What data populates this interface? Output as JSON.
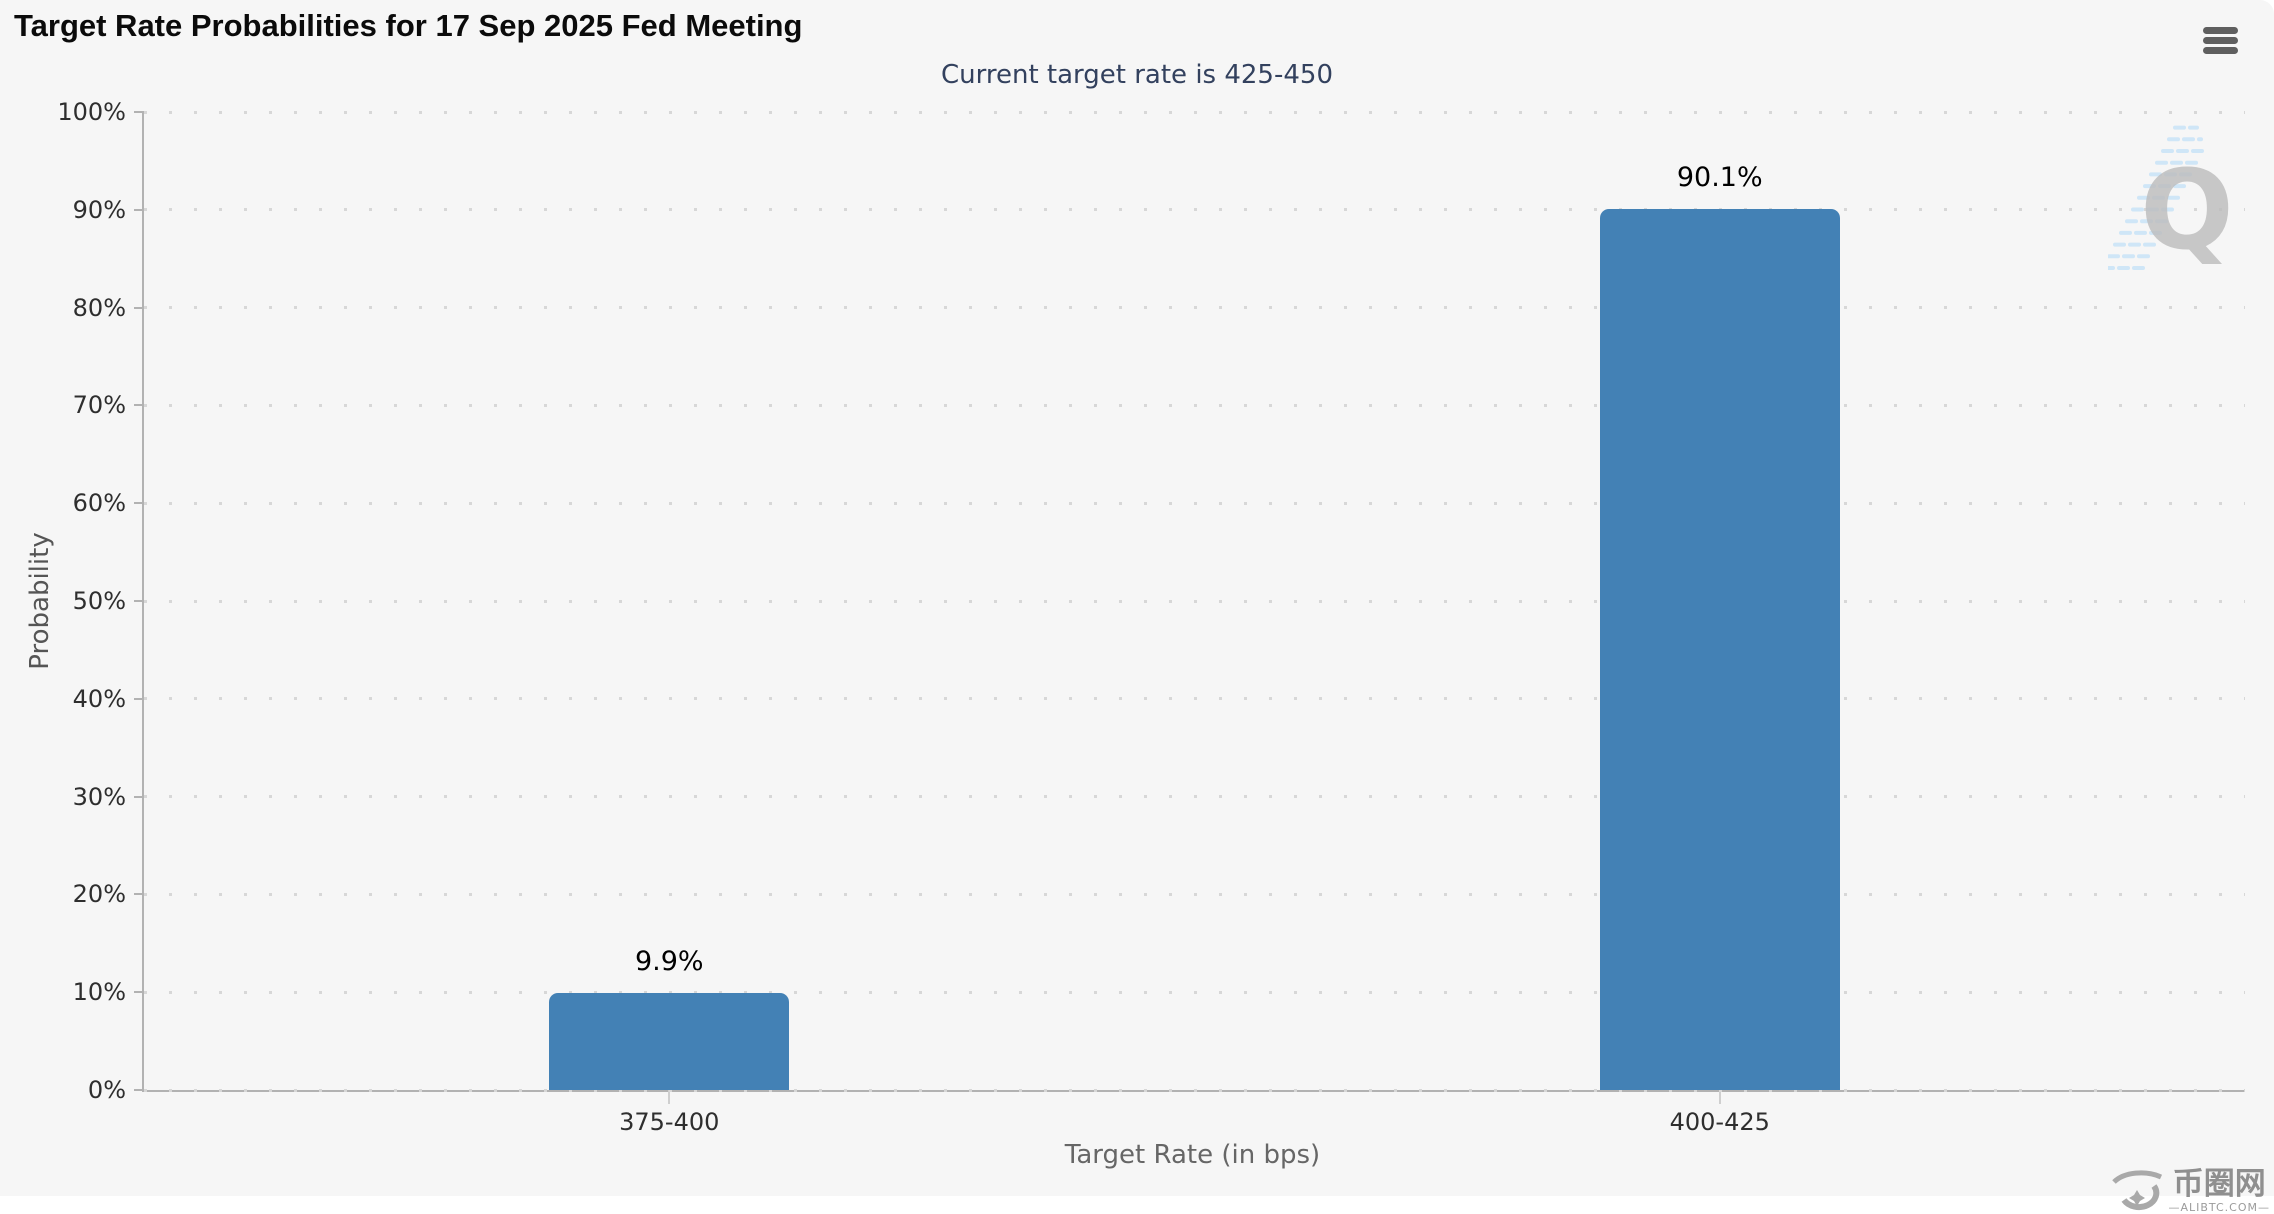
{
  "header": {
    "menu_icon": "hamburger-icon"
  },
  "chart_data": {
    "type": "bar",
    "title": "Target Rate Probabilities for 17 Sep 2025 Fed Meeting",
    "subtitle": "Current target rate is 425-450",
    "xlabel": "Target Rate (in bps)",
    "ylabel": "Probability",
    "categories": [
      "375-400",
      "400-425"
    ],
    "values": [
      9.9,
      90.1
    ],
    "value_labels": [
      "9.9%",
      "90.1%"
    ],
    "ylim": [
      0,
      100
    ],
    "ytick_labels": [
      "0%",
      "10%",
      "20%",
      "30%",
      "40%",
      "50%",
      "60%",
      "70%",
      "80%",
      "90%",
      "100%"
    ],
    "grid": "horizontal-dotted",
    "legend": false,
    "bar_color": "#4381b5",
    "axis_color": "#b2b2b2",
    "grid_color": "#d7d7d7",
    "subtitle_color": "#33415e",
    "background_color": "#f6f6f6"
  },
  "watermarks": {
    "q_letter": "Q",
    "site_name": "币圈网",
    "site_domain": "—ALIBTC.COM—"
  }
}
